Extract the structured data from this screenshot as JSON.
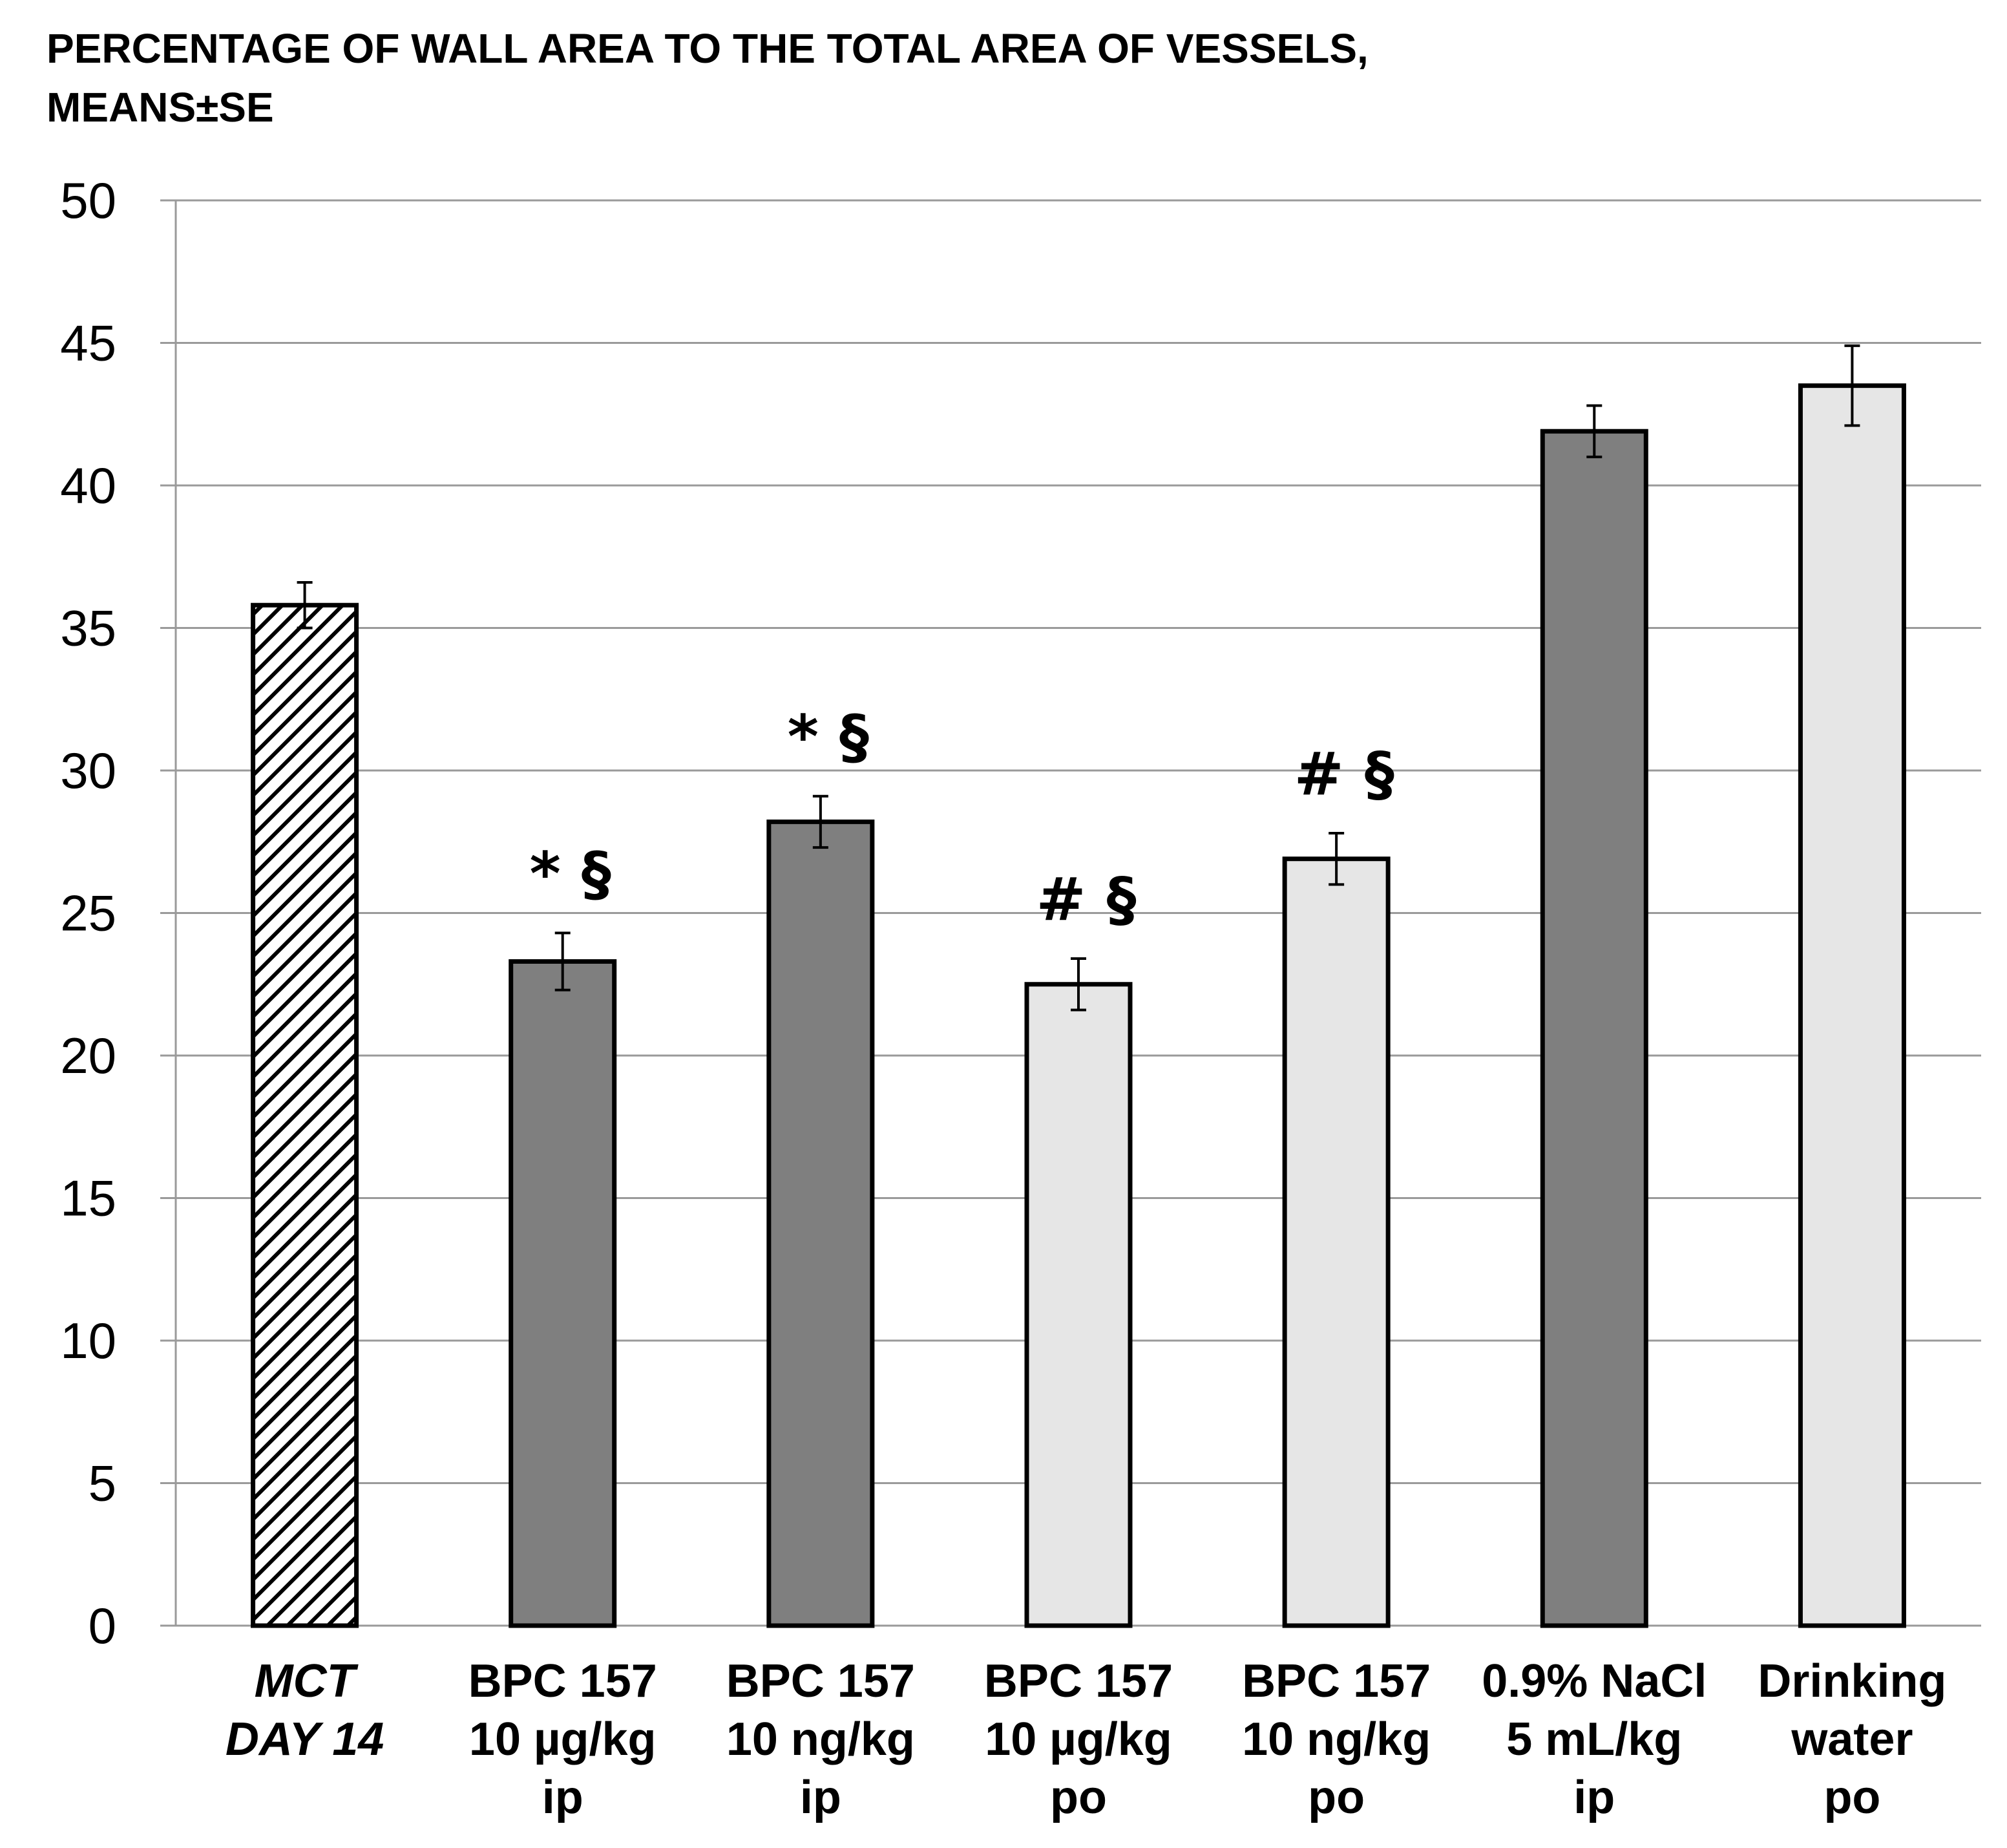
{
  "chart_data": {
    "type": "bar",
    "title": "PERCENTAGE OF WALL  AREA TO THE TOTAL AREA OF VESSELS,",
    "subtitle": "MEANS±SE",
    "xlabel": "",
    "ylabel": "",
    "ylim": [
      0,
      50
    ],
    "yticks": [
      "0",
      "5",
      "10",
      "15",
      "20",
      "25",
      "30",
      "35",
      "40",
      "45",
      "50"
    ],
    "grid": true,
    "categories": [
      {
        "lines": [
          "MCT",
          "DAY 14"
        ],
        "italic": true
      },
      {
        "lines": [
          "BPC 157",
          "10 µg/kg",
          "ip"
        ],
        "italic": false
      },
      {
        "lines": [
          "BPC 157",
          "10 ng/kg",
          "ip"
        ],
        "italic": false
      },
      {
        "lines": [
          "BPC 157",
          "10 µg/kg",
          "po"
        ],
        "italic": false
      },
      {
        "lines": [
          "BPC 157",
          "10 ng/kg",
          "po"
        ],
        "italic": false
      },
      {
        "lines": [
          "0.9% NaCl",
          "5 mL/kg",
          "ip"
        ],
        "italic": false
      },
      {
        "lines": [
          "Drinking",
          "water",
          "po"
        ],
        "italic": false
      }
    ],
    "values": [
      35.8,
      23.3,
      28.2,
      22.5,
      26.9,
      41.9,
      43.5
    ],
    "errors": [
      0.8,
      1.0,
      0.9,
      0.9,
      0.9,
      0.9,
      1.4
    ],
    "fills": [
      "hatch",
      "#7f7f7f",
      "#7f7f7f",
      "#e6e6e6",
      "#e6e6e6",
      "#7f7f7f",
      "#e6e6e6"
    ],
    "annotations": [
      "",
      "* §",
      "* §",
      "# §",
      "# §",
      "",
      ""
    ]
  }
}
